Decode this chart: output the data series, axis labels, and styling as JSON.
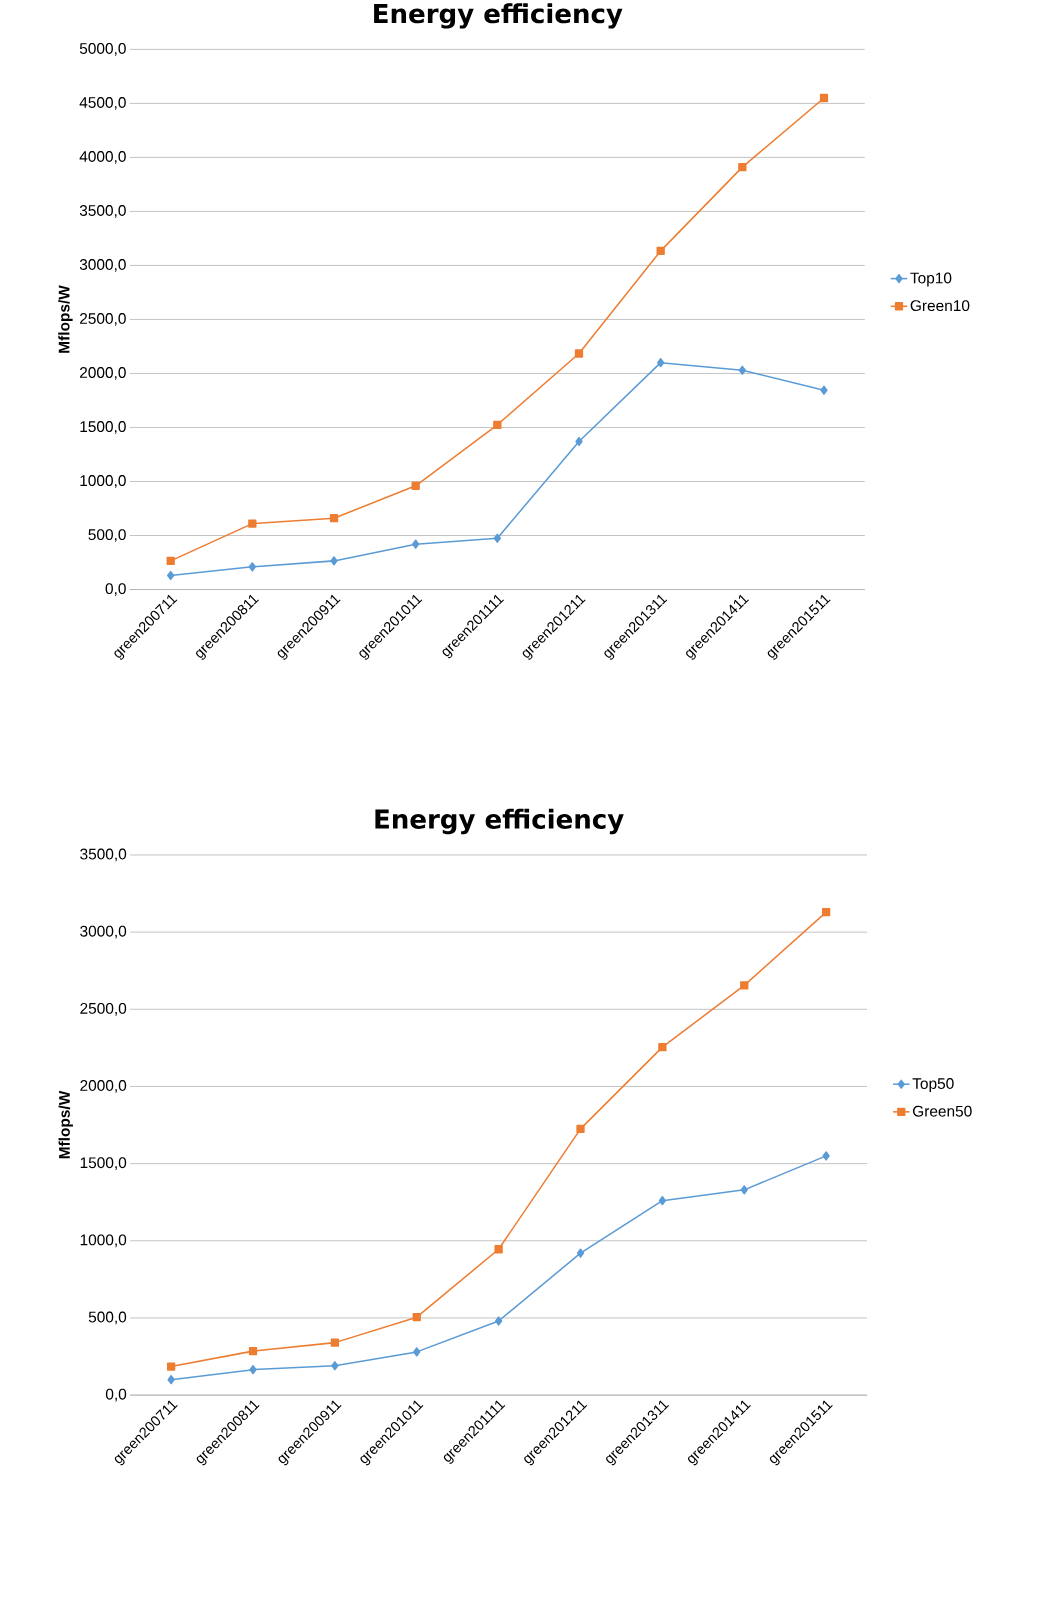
{
  "chart_data": [
    {
      "type": "line",
      "title": "Energy efficiency",
      "ylabel": "Mflops/W",
      "categories": [
        "green200711",
        "green200811",
        "green200911",
        "green201011",
        "green201111",
        "green201211",
        "green201311",
        "green201411",
        "green201511"
      ],
      "series": [
        {
          "name": "Top10",
          "color": "#5b9bd5",
          "marker": "diamond",
          "values": [
            130,
            210,
            265,
            420,
            475,
            1370,
            2100,
            2030,
            1845
          ]
        },
        {
          "name": "Green10",
          "color": "#ed7d31",
          "marker": "square",
          "values": [
            265,
            610,
            660,
            960,
            1525,
            2185,
            3135,
            3910,
            4550
          ]
        }
      ],
      "ylim": [
        0,
        5000
      ],
      "yticks": [
        {
          "value": 0,
          "label": "0,0"
        },
        {
          "value": 500,
          "label": "500,0"
        },
        {
          "value": 1000,
          "label": "1000,0"
        },
        {
          "value": 1500,
          "label": "1500,0"
        },
        {
          "value": 2000,
          "label": "2000,0"
        },
        {
          "value": 2500,
          "label": "2500,0"
        },
        {
          "value": 3000,
          "label": "3000,0"
        },
        {
          "value": 3500,
          "label": "3500,0"
        },
        {
          "value": 4000,
          "label": "4000,0"
        },
        {
          "value": 4500,
          "label": "4500,0"
        },
        {
          "value": 5000,
          "label": "5000,0"
        }
      ],
      "grid": "y",
      "legend": "right",
      "line_style": "solid"
    },
    {
      "type": "line",
      "title": "Energy efficiency",
      "ylabel": "Mflops/W",
      "categories": [
        "green200711",
        "green200811",
        "green200911",
        "green201011",
        "green201111",
        "green201211",
        "green201311",
        "green201411",
        "green201511"
      ],
      "series": [
        {
          "name": "Top50",
          "color": "#5b9bd5",
          "marker": "diamond",
          "values": [
            100,
            165,
            190,
            280,
            480,
            920,
            1260,
            1330,
            1550
          ]
        },
        {
          "name": "Green50",
          "color": "#ed7d31",
          "marker": "square",
          "values": [
            185,
            285,
            340,
            505,
            945,
            1725,
            2255,
            2655,
            3130
          ]
        }
      ],
      "ylim": [
        0,
        3500
      ],
      "yticks": [
        {
          "value": 0,
          "label": "0,0"
        },
        {
          "value": 500,
          "label": "500,0"
        },
        {
          "value": 1000,
          "label": "1000,0"
        },
        {
          "value": 1500,
          "label": "1500,0"
        },
        {
          "value": 2000,
          "label": "2000,0"
        },
        {
          "value": 2500,
          "label": "2500,0"
        },
        {
          "value": 3000,
          "label": "3000,0"
        },
        {
          "value": 3500,
          "label": "3500,0"
        }
      ],
      "grid": "y",
      "legend": "right",
      "line_style": "solid"
    }
  ]
}
